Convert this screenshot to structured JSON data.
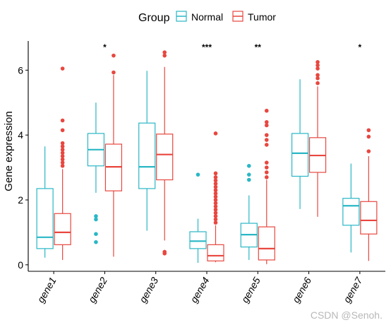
{
  "chart_data": {
    "type": "box",
    "xlabel": "",
    "ylabel": "Gene expression",
    "ylim": [
      -0.2,
      6.9
    ],
    "yticks": [
      0,
      2,
      4,
      6
    ],
    "grid": false,
    "legend": {
      "title": "Group",
      "position": "top"
    },
    "categories": [
      "gene1",
      "gene2",
      "gene3",
      "gene4",
      "gene5",
      "gene6",
      "gene7"
    ],
    "significance": [
      "",
      "*",
      "",
      "***",
      "**",
      "",
      "*"
    ],
    "series": [
      {
        "name": "Normal",
        "color": "#2ab7c6",
        "boxes": [
          {
            "min": 0.22,
            "q1": 0.5,
            "median": 0.85,
            "q3": 2.35,
            "max": 3.65,
            "outliers": []
          },
          {
            "min": 2.22,
            "q1": 3.05,
            "median": 3.55,
            "q3": 4.05,
            "max": 5.0,
            "outliers": [
              1.5,
              1.4,
              0.95,
              0.7
            ]
          },
          {
            "min": 1.05,
            "q1": 2.35,
            "median": 3.02,
            "q3": 4.37,
            "max": 5.98,
            "outliers": []
          },
          {
            "min": 0.06,
            "q1": 0.5,
            "median": 0.73,
            "q3": 1.02,
            "max": 1.42,
            "outliers": [
              2.78
            ]
          },
          {
            "min": 0.15,
            "q1": 0.55,
            "median": 0.93,
            "q3": 1.28,
            "max": 2.14,
            "outliers": [
              3.05,
              2.78,
              2.62
            ]
          },
          {
            "min": 1.72,
            "q1": 2.73,
            "median": 3.44,
            "q3": 4.05,
            "max": 5.72,
            "outliers": []
          },
          {
            "min": 0.38,
            "q1": 1.22,
            "median": 1.82,
            "q3": 2.05,
            "max": 3.12,
            "outliers": []
          }
        ]
      },
      {
        "name": "Tumor",
        "color": "#e8473f",
        "boxes": [
          {
            "min": 0.15,
            "q1": 0.62,
            "median": 1.0,
            "q3": 1.58,
            "max": 2.95,
            "outliers": [
              3.05,
              3.15,
              3.25,
              3.35,
              3.45,
              3.55,
              3.65,
              3.75,
              4.15,
              4.45,
              6.05
            ]
          },
          {
            "min": 0.25,
            "q1": 2.28,
            "median": 3.02,
            "q3": 3.72,
            "max": 5.85,
            "outliers": [
              5.93,
              6.45
            ]
          },
          {
            "min": 0.75,
            "q1": 2.62,
            "median": 3.4,
            "q3": 4.03,
            "max": 6.1,
            "outliers": [
              0.35,
              0.4,
              6.45,
              6.55
            ]
          },
          {
            "min": 0.08,
            "q1": 0.12,
            "median": 0.28,
            "q3": 0.62,
            "max": 1.22,
            "outliers": [
              1.3,
              1.4,
              1.5,
              1.6,
              1.7,
              1.8,
              1.9,
              2.0,
              2.1,
              2.2,
              2.3,
              2.4,
              2.5,
              2.6,
              2.7,
              2.82,
              4.05
            ]
          },
          {
            "min": 0.02,
            "q1": 0.15,
            "median": 0.5,
            "q3": 1.17,
            "max": 2.62,
            "outliers": [
              2.7,
              2.85,
              3.0,
              3.15,
              3.7,
              3.85,
              4.0,
              4.3,
              4.4,
              4.75
            ]
          },
          {
            "min": 1.48,
            "q1": 2.85,
            "median": 3.37,
            "q3": 3.92,
            "max": 5.5,
            "outliers": [
              5.6,
              5.75,
              5.85,
              6.05,
              6.15,
              6.25
            ]
          },
          {
            "min": 0.12,
            "q1": 0.95,
            "median": 1.37,
            "q3": 1.95,
            "max": 3.35,
            "outliers": [
              3.5,
              3.95,
              4.15
            ]
          }
        ]
      }
    ]
  },
  "watermark": "CSDN @Senoh."
}
